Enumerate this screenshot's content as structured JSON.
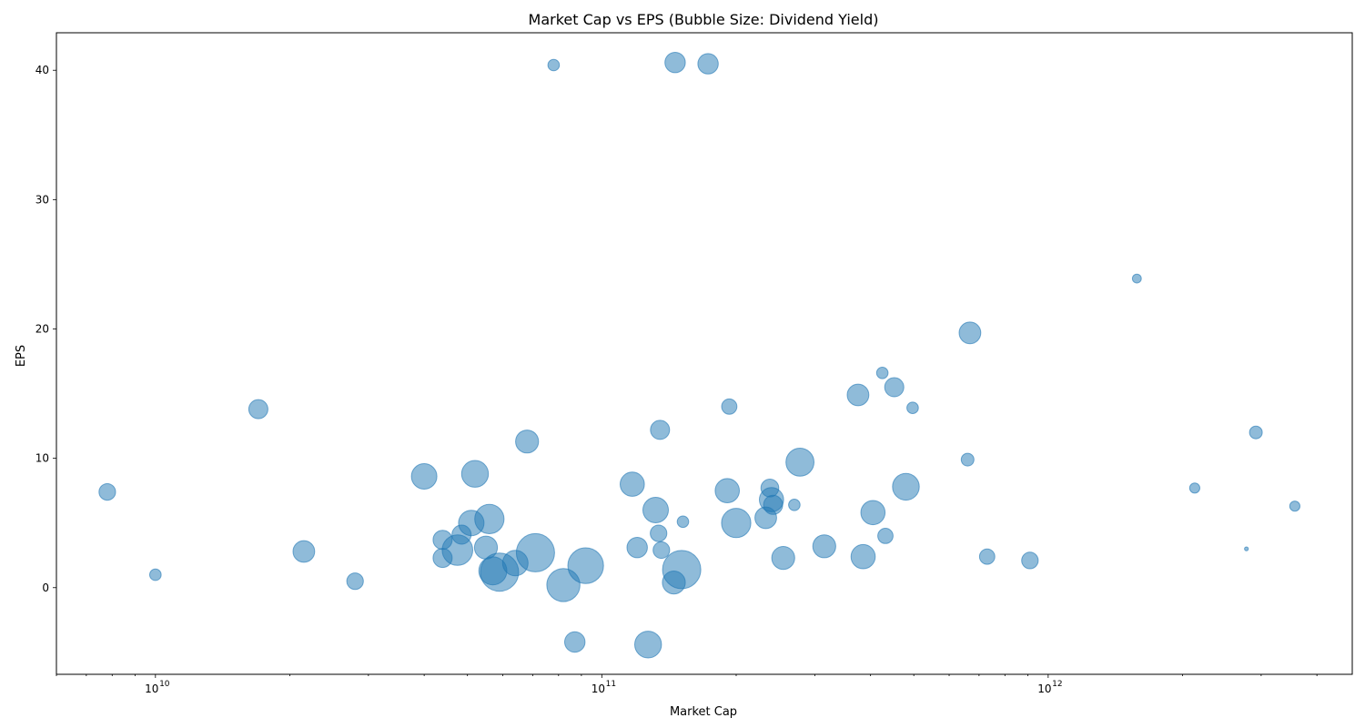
{
  "chart_data": {
    "type": "scatter",
    "title": "Market Cap vs EPS (Bubble Size: Dividend Yield)",
    "xlabel": "Market Cap",
    "ylabel": "EPS",
    "x_scale": "log",
    "xlim": [
      6000000000,
      4800000000000
    ],
    "ylim": [
      -6.7,
      42.9
    ],
    "x_major_ticks": [
      {
        "value": 10000000000,
        "base": "10",
        "exp": "10"
      },
      {
        "value": 100000000000,
        "base": "10",
        "exp": "11"
      },
      {
        "value": 1000000000000,
        "base": "10",
        "exp": "12"
      }
    ],
    "y_ticks": [
      0,
      10,
      20,
      30,
      40
    ],
    "point_color": "#1f77b4",
    "point_opacity": 0.5,
    "size_encodes": "Dividend Yield (relative)",
    "points": [
      {
        "x": 7800000000,
        "y": 7.4,
        "size": 1.3
      },
      {
        "x": 10000000000,
        "y": 1.0,
        "size": 0.9
      },
      {
        "x": 17000000000,
        "y": 13.8,
        "size": 1.5
      },
      {
        "x": 21500000000,
        "y": 2.8,
        "size": 1.7
      },
      {
        "x": 28000000000,
        "y": 0.5,
        "size": 1.3
      },
      {
        "x": 40000000000,
        "y": 8.6,
        "size": 2.0
      },
      {
        "x": 44000000000,
        "y": 2.3,
        "size": 1.5
      },
      {
        "x": 44000000000,
        "y": 3.7,
        "size": 1.5
      },
      {
        "x": 47500000000,
        "y": 2.9,
        "size": 2.4
      },
      {
        "x": 48500000000,
        "y": 4.1,
        "size": 1.5
      },
      {
        "x": 51000000000,
        "y": 5.0,
        "size": 2.0
      },
      {
        "x": 52000000000,
        "y": 8.8,
        "size": 2.1
      },
      {
        "x": 55000000000,
        "y": 3.1,
        "size": 1.8
      },
      {
        "x": 56000000000,
        "y": 5.3,
        "size": 2.3
      },
      {
        "x": 57000000000,
        "y": 1.3,
        "size": 2.2
      },
      {
        "x": 59000000000,
        "y": 1.2,
        "size": 3.0
      },
      {
        "x": 64000000000,
        "y": 1.9,
        "size": 2.0
      },
      {
        "x": 68000000000,
        "y": 11.3,
        "size": 1.8
      },
      {
        "x": 71000000000,
        "y": 2.7,
        "size": 3.0
      },
      {
        "x": 78000000000,
        "y": 40.4,
        "size": 0.9
      },
      {
        "x": 82000000000,
        "y": 0.2,
        "size": 2.6
      },
      {
        "x": 87000000000,
        "y": -4.2,
        "size": 1.6
      },
      {
        "x": 92000000000,
        "y": 1.7,
        "size": 2.8
      },
      {
        "x": 117000000000,
        "y": 8.0,
        "size": 1.9
      },
      {
        "x": 120000000000,
        "y": 3.1,
        "size": 1.6
      },
      {
        "x": 127000000000,
        "y": -4.4,
        "size": 2.1
      },
      {
        "x": 132000000000,
        "y": 6.0,
        "size": 2.0
      },
      {
        "x": 134000000000,
        "y": 4.2,
        "size": 1.3
      },
      {
        "x": 135000000000,
        "y": 12.2,
        "size": 1.5
      },
      {
        "x": 136000000000,
        "y": 2.9,
        "size": 1.3
      },
      {
        "x": 145000000000,
        "y": 0.4,
        "size": 1.8
      },
      {
        "x": 146000000000,
        "y": 40.6,
        "size": 1.6
      },
      {
        "x": 151000000000,
        "y": 1.4,
        "size": 3.0
      },
      {
        "x": 152000000000,
        "y": 5.1,
        "size": 0.9
      },
      {
        "x": 173000000000,
        "y": 40.5,
        "size": 1.6
      },
      {
        "x": 191000000000,
        "y": 7.5,
        "size": 1.9
      },
      {
        "x": 193000000000,
        "y": 14.0,
        "size": 1.2
      },
      {
        "x": 200000000000,
        "y": 5.0,
        "size": 2.3
      },
      {
        "x": 233000000000,
        "y": 5.4,
        "size": 1.7
      },
      {
        "x": 238000000000,
        "y": 7.7,
        "size": 1.4
      },
      {
        "x": 240000000000,
        "y": 6.8,
        "size": 1.9
      },
      {
        "x": 242000000000,
        "y": 6.4,
        "size": 1.5
      },
      {
        "x": 255000000000,
        "y": 2.3,
        "size": 1.8
      },
      {
        "x": 270000000000,
        "y": 6.4,
        "size": 0.9
      },
      {
        "x": 278000000000,
        "y": 9.7,
        "size": 2.2
      },
      {
        "x": 315000000000,
        "y": 3.2,
        "size": 1.8
      },
      {
        "x": 375000000000,
        "y": 14.9,
        "size": 1.7
      },
      {
        "x": 385000000000,
        "y": 2.4,
        "size": 1.9
      },
      {
        "x": 405000000000,
        "y": 5.8,
        "size": 1.9
      },
      {
        "x": 425000000000,
        "y": 16.6,
        "size": 0.9
      },
      {
        "x": 432000000000,
        "y": 4.0,
        "size": 1.2
      },
      {
        "x": 452000000000,
        "y": 15.5,
        "size": 1.5
      },
      {
        "x": 480000000000,
        "y": 7.8,
        "size": 2.1
      },
      {
        "x": 497000000000,
        "y": 13.9,
        "size": 0.9
      },
      {
        "x": 660000000000,
        "y": 9.9,
        "size": 1.0
      },
      {
        "x": 668000000000,
        "y": 19.7,
        "size": 1.7
      },
      {
        "x": 730000000000,
        "y": 2.4,
        "size": 1.2
      },
      {
        "x": 910000000000,
        "y": 2.1,
        "size": 1.3
      },
      {
        "x": 1580000000000,
        "y": 23.9,
        "size": 0.7
      },
      {
        "x": 2130000000000,
        "y": 7.7,
        "size": 0.8
      },
      {
        "x": 2780000000000,
        "y": 3.0,
        "size": 0.3
      },
      {
        "x": 2920000000000,
        "y": 12.0,
        "size": 1.0
      },
      {
        "x": 3570000000000,
        "y": 6.3,
        "size": 0.8
      }
    ]
  }
}
